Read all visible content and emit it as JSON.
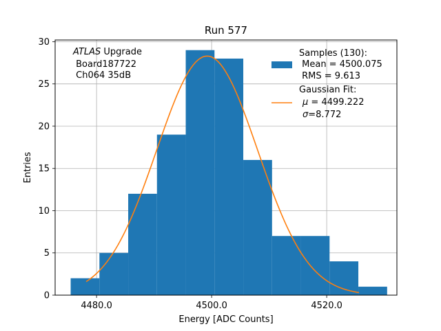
{
  "chart_data": {
    "type": "histogram",
    "title": "Run 577",
    "xlabel": "Energy [ADC Counts]",
    "ylabel": "Entries",
    "xlim": [
      4472.8,
      4532.2
    ],
    "ylim": [
      0,
      30.2
    ],
    "xticks": [
      4480,
      4500,
      4520
    ],
    "xtick_labels": [
      "4480.0",
      "4500.0",
      "4520.0"
    ],
    "yticks": [
      0,
      5,
      10,
      15,
      20,
      25,
      30
    ],
    "ytick_labels": [
      "0",
      "5",
      "10",
      "15",
      "20",
      "25",
      "30"
    ],
    "grid": true,
    "bins": [
      {
        "x0": 4475.5,
        "x1": 4480.5,
        "count": 2
      },
      {
        "x0": 4480.5,
        "x1": 4485.5,
        "count": 5
      },
      {
        "x0": 4485.5,
        "x1": 4490.5,
        "count": 12
      },
      {
        "x0": 4490.5,
        "x1": 4495.5,
        "count": 19
      },
      {
        "x0": 4495.5,
        "x1": 4500.5,
        "count": 29
      },
      {
        "x0": 4500.5,
        "x1": 4505.5,
        "count": 28
      },
      {
        "x0": 4505.5,
        "x1": 4510.5,
        "count": 16
      },
      {
        "x0": 4510.5,
        "x1": 4515.5,
        "count": 7
      },
      {
        "x0": 4515.5,
        "x1": 4520.5,
        "count": 7
      },
      {
        "x0": 4520.5,
        "x1": 4525.5,
        "count": 4
      },
      {
        "x0": 4525.5,
        "x1": 4530.5,
        "count": 1
      }
    ],
    "fit": {
      "type": "gaussian",
      "amplitude": 28.3,
      "mu": 4499.222,
      "sigma": 8.772,
      "x_range": [
        4478.2,
        4525.6
      ]
    },
    "colors": {
      "histogram": "#1f77b4",
      "fit": "#ff7f0e",
      "grid": "#b0b0b0"
    },
    "annotation": {
      "line1_italic": "ATLAS",
      "line1_rest": " Upgrade",
      "line2": " Board187722",
      "line3": " Ch064 35dB"
    },
    "legend": {
      "placement": "upper right",
      "samples_title": "Samples (130):",
      "samples_mean": " Mean = 4500.075",
      "samples_rms": " RMS = 9.613",
      "fit_title": "Gaussian Fit:",
      "fit_mu_symbol": "μ",
      "fit_mu_value": " = 4499.222",
      "fit_sigma_symbol": "σ",
      "fit_sigma_value": "=8.772"
    }
  }
}
